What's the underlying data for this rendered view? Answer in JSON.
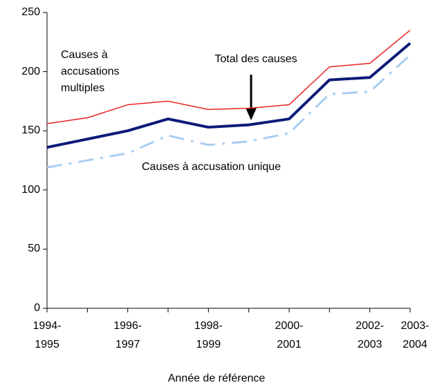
{
  "chart_data": {
    "type": "line",
    "x_label": "Année de référence",
    "categories": [
      "1994-1995",
      null,
      "1996-1997",
      null,
      "1998-1999",
      null,
      "2000-2001",
      null,
      "2002-2003",
      "2003-2004"
    ],
    "series": [
      {
        "name": "Causes à accusations multiples",
        "color": "#e8231e",
        "style": "solid",
        "values": [
          156,
          161,
          172,
          175,
          168,
          169,
          172,
          204,
          207,
          235
        ]
      },
      {
        "name": "Total des causes",
        "color": "#0c1a78",
        "style": "solid",
        "values": [
          136,
          143,
          150,
          160,
          153,
          155,
          160,
          193,
          195,
          224
        ]
      },
      {
        "name": "Causes à accusation unique",
        "color": "#a9cdf2",
        "style": "dashdot",
        "values": [
          119,
          125,
          131,
          146,
          138,
          141,
          148,
          181,
          183,
          214
        ]
      }
    ],
    "ylim": [
      0,
      250
    ],
    "yticks": [
      0,
      50,
      100,
      150,
      200,
      250
    ],
    "grid": false
  }
}
